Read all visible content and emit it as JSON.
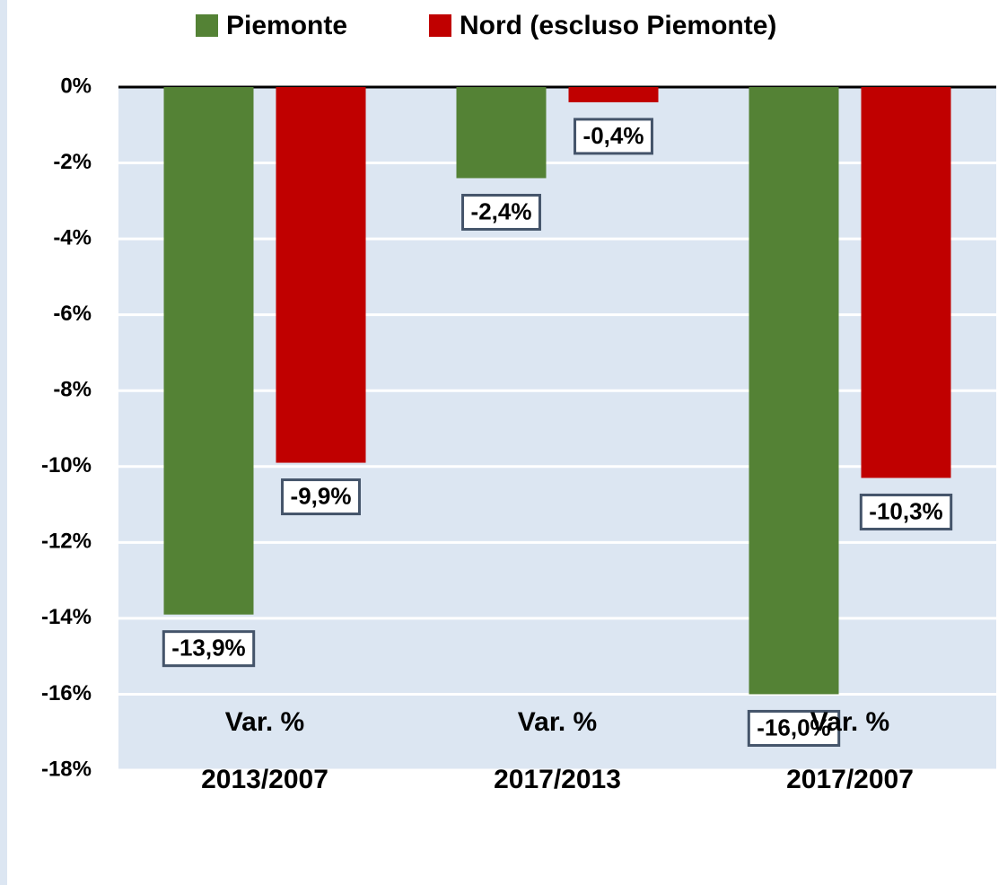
{
  "chart_data": {
    "type": "bar",
    "categories": [
      "Var. % 2013/2007",
      "Var. % 2017/2013",
      "Var. % 2017/2007"
    ],
    "series": [
      {
        "name": "Piemonte",
        "color": "#548235",
        "values": [
          -13.9,
          -2.4,
          -16.0
        ],
        "value_labels": [
          "-13,9%",
          "-2,4%",
          "-16,0%"
        ]
      },
      {
        "name": "Nord (escluso Piemonte)",
        "color": "#c00000",
        "values": [
          -9.9,
          -0.4,
          -10.3
        ],
        "value_labels": [
          "-9,9%",
          "-0,4%",
          "-10,3%"
        ]
      }
    ],
    "ylim": [
      -18,
      0
    ],
    "yticks": [
      {
        "value": 0,
        "label": "0%"
      },
      {
        "value": -2,
        "label": "-2%"
      },
      {
        "value": -4,
        "label": "-4%"
      },
      {
        "value": -6,
        "label": "-6%"
      },
      {
        "value": -8,
        "label": "-8%"
      },
      {
        "value": -10,
        "label": "-10%"
      },
      {
        "value": -12,
        "label": "-12%"
      },
      {
        "value": -14,
        "label": "-14%"
      },
      {
        "value": -16,
        "label": "-16%"
      },
      {
        "value": -18,
        "label": "-18%"
      }
    ],
    "grid": true,
    "legend": "top"
  }
}
